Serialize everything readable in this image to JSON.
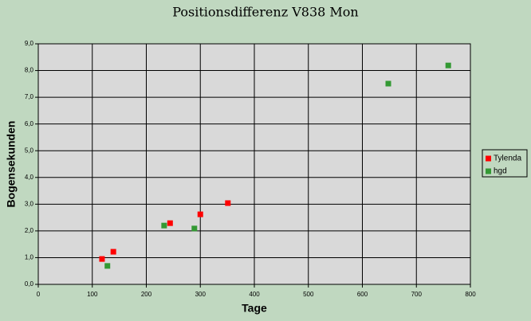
{
  "chart_data": {
    "type": "scatter",
    "title": "Positionsdifferenz V838 Mon",
    "x_label": "Tage",
    "y_label": "Bogensekunden",
    "series": [
      {
        "name": "Tylenda",
        "color": "#ff0000",
        "x": [
          118,
          139,
          244,
          300,
          351
        ],
        "values": [
          0.95,
          1.22,
          2.29,
          2.62,
          3.04
        ]
      },
      {
        "name": "hgd",
        "color": "#339933",
        "x": [
          128,
          233,
          289,
          648,
          759
        ],
        "values": [
          0.69,
          2.2,
          2.09,
          7.51,
          8.19
        ]
      }
    ],
    "xlim": [
      0,
      800
    ],
    "xticks": [
      0,
      100,
      200,
      300,
      400,
      500,
      600,
      700,
      800
    ],
    "ylim": [
      0,
      9
    ],
    "yticks": [
      {
        "value": 0,
        "label": "0,0"
      },
      {
        "value": 1,
        "label": "1,0"
      },
      {
        "value": 2,
        "label": "2,0"
      },
      {
        "value": 3,
        "label": "3,0"
      },
      {
        "value": 4,
        "label": "4,0"
      },
      {
        "value": 5,
        "label": "5,0"
      },
      {
        "value": 6,
        "label": "6,0"
      },
      {
        "value": 7,
        "label": "7,0"
      },
      {
        "value": 8,
        "label": "8,0"
      },
      {
        "value": 9,
        "label": "9,0"
      }
    ],
    "grid": true,
    "legend": "right"
  }
}
